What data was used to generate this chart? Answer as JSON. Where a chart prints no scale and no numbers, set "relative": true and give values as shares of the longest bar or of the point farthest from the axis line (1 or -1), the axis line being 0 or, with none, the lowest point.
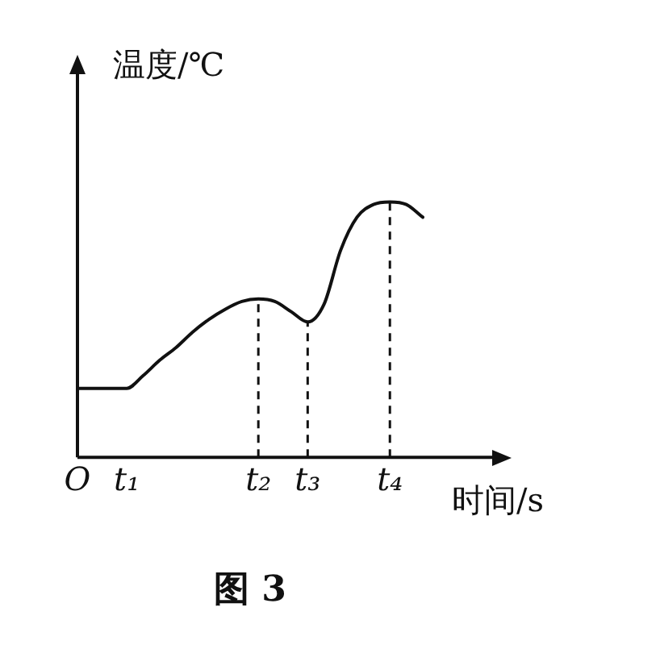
{
  "chart_data": {
    "type": "line",
    "title": "图 3",
    "xlabel": "时间/s",
    "ylabel": "温度/℃",
    "relative": true,
    "marker": "none",
    "line_style": "solid",
    "legend": false,
    "categories": [
      "O",
      null,
      null,
      "t₁",
      null,
      null,
      null,
      null,
      null,
      null,
      null,
      "t₂",
      null,
      null,
      "t₃",
      null,
      null,
      null,
      null,
      "t₄",
      null,
      null
    ],
    "series": [
      {
        "color": "#111111",
        "values": [
          0.27,
          0.27,
          0.27,
          0.27,
          0.32,
          0.38,
          0.43,
          0.49,
          0.54,
          0.58,
          0.61,
          0.62,
          0.61,
          0.57,
          0.53,
          0.6,
          0.81,
          0.94,
          0.99,
          1.0,
          0.99,
          0.94
        ]
      }
    ],
    "ref_lines": [
      {
        "axis": "x",
        "value": "t₂",
        "line_style": "dashed"
      },
      {
        "axis": "x",
        "value": "t₃",
        "line_style": "dashed"
      },
      {
        "axis": "x",
        "value": "t₄",
        "line_style": "dashed"
      }
    ]
  }
}
